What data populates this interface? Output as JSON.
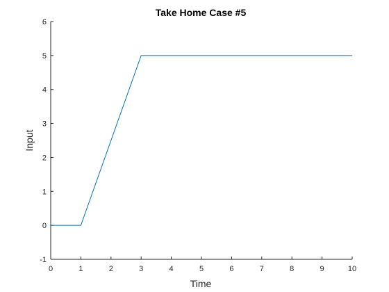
{
  "chart_data": {
    "type": "line",
    "title": "Take Home Case #5",
    "xlabel": "Time",
    "ylabel": "Input",
    "xlim": [
      0,
      10
    ],
    "ylim": [
      -1,
      6
    ],
    "xticks": [
      "0",
      "1",
      "2",
      "3",
      "4",
      "5",
      "6",
      "7",
      "8",
      "9",
      "10"
    ],
    "yticks": [
      "-1",
      "0",
      "1",
      "2",
      "3",
      "4",
      "5",
      "6"
    ],
    "grid": false,
    "legend": "none",
    "series": [
      {
        "x": [
          0,
          1,
          3,
          10
        ],
        "y": [
          0,
          0,
          5,
          5
        ],
        "color": "#0072bd"
      }
    ]
  }
}
